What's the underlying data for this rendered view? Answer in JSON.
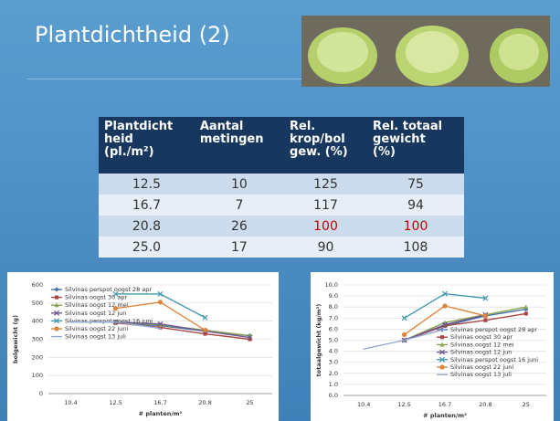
{
  "header": {
    "title": "Plantdichtheid (2)"
  },
  "table": {
    "header": [
      [
        "Plantdicht",
        "heid",
        "(pl./m²)"
      ],
      [
        "Aantal",
        "metingen"
      ],
      [
        "Rel.",
        "krop/bol",
        "gew. (%)"
      ],
      [
        "Rel. totaal",
        "gewicht",
        "(%)"
      ]
    ],
    "rows": [
      [
        "12.5",
        "10",
        "125",
        "75"
      ],
      [
        "16.7",
        "7",
        "117",
        "94"
      ],
      [
        "20.8",
        "26",
        "100",
        "100"
      ],
      [
        "25.0",
        "17",
        "90",
        "108"
      ]
    ]
  },
  "charts": [
    {
      "type": "line",
      "y_label": "bolgewicht (g)",
      "x_label": "# planten/m²",
      "categories": [
        "10.4",
        "12.5",
        "16.7",
        "20.8",
        "25"
      ],
      "ylim": [
        0,
        600
      ],
      "yticks": [
        0,
        100,
        200,
        300,
        400,
        500,
        600
      ],
      "series": [
        {
          "name": "Silvinas perspot oogst 28 apr",
          "color": "#4572a7",
          "marker": "diamond",
          "values": [
            null,
            390,
            375,
            345,
            320
          ]
        },
        {
          "name": "Silvinas oogst 30 apr",
          "color": "#aa4643",
          "marker": "square",
          "values": [
            null,
            390,
            365,
            330,
            300
          ]
        },
        {
          "name": "Silvinas oogst 12 mei",
          "color": "#89a54e",
          "marker": "triangle",
          "values": [
            null,
            395,
            380,
            350,
            320
          ]
        },
        {
          "name": "Silvinas oogst 12 jun",
          "color": "#71588f",
          "marker": "cross",
          "values": [
            null,
            395,
            385,
            345,
            310
          ]
        },
        {
          "name": "Silvinas perspot oogst 16 juni",
          "color": "#4198af",
          "marker": "cross",
          "values": [
            null,
            550,
            550,
            420,
            null
          ]
        },
        {
          "name": "Silvinas oogst 22 juni",
          "color": "#db843d",
          "marker": "circle",
          "values": [
            null,
            470,
            505,
            350,
            null
          ]
        },
        {
          "name": "Silvinas oogst 13 juli",
          "color": "#93a9cf",
          "marker": "none",
          "values": [
            395,
            395,
            360,
            null,
            null
          ]
        }
      ]
    },
    {
      "type": "line",
      "y_label": "totaalgewicht (kg/m²)",
      "x_label": "# planten/m²",
      "categories": [
        "10.4",
        "12.5",
        "16.7",
        "20.8",
        "25"
      ],
      "ylim": [
        0,
        10
      ],
      "yticks": [
        {
          "value": 0,
          "label": "0.0"
        },
        {
          "value": 1,
          "label": "1.0"
        },
        {
          "value": 2,
          "label": "2.0"
        },
        {
          "value": 3,
          "label": "3.0"
        },
        {
          "value": 4,
          "label": "4.0"
        },
        {
          "value": 5,
          "label": "5.0"
        },
        {
          "value": 6,
          "label": "6.0"
        },
        {
          "value": 7,
          "label": "7.0"
        },
        {
          "value": 8,
          "label": "8.0"
        },
        {
          "value": 9,
          "label": "9.0"
        },
        {
          "value": 10,
          "label": "10.0"
        }
      ],
      "series": [
        {
          "name": "Silvinas perspot oogst 28 apr",
          "color": "#4572a7",
          "marker": "diamond",
          "values": [
            null,
            5.0,
            6.3,
            7.2,
            7.8
          ]
        },
        {
          "name": "Silvinas oogst 30 apr",
          "color": "#aa4643",
          "marker": "square",
          "values": [
            null,
            5.0,
            6.3,
            6.8,
            7.4
          ]
        },
        {
          "name": "Silvinas oogst 12 mei",
          "color": "#89a54e",
          "marker": "triangle",
          "values": [
            null,
            5.0,
            6.6,
            7.3,
            8.0
          ]
        },
        {
          "name": "Silvinas oogst 12 jun",
          "color": "#71588f",
          "marker": "cross",
          "values": [
            null,
            5.0,
            6.4,
            7.3,
            null
          ]
        },
        {
          "name": "Silvinas perspot oogst 16 juni",
          "color": "#4198af",
          "marker": "cross",
          "values": [
            null,
            7.0,
            9.2,
            8.8,
            null
          ]
        },
        {
          "name": "Silvinas oogst 22 juni",
          "color": "#db843d",
          "marker": "circle",
          "values": [
            null,
            5.5,
            8.1,
            7.2,
            null
          ]
        },
        {
          "name": "Silvinas oogst 13 juli",
          "color": "#93a9cf",
          "marker": "none",
          "values": [
            4.2,
            5.0,
            6.0,
            null,
            null
          ]
        }
      ]
    }
  ]
}
